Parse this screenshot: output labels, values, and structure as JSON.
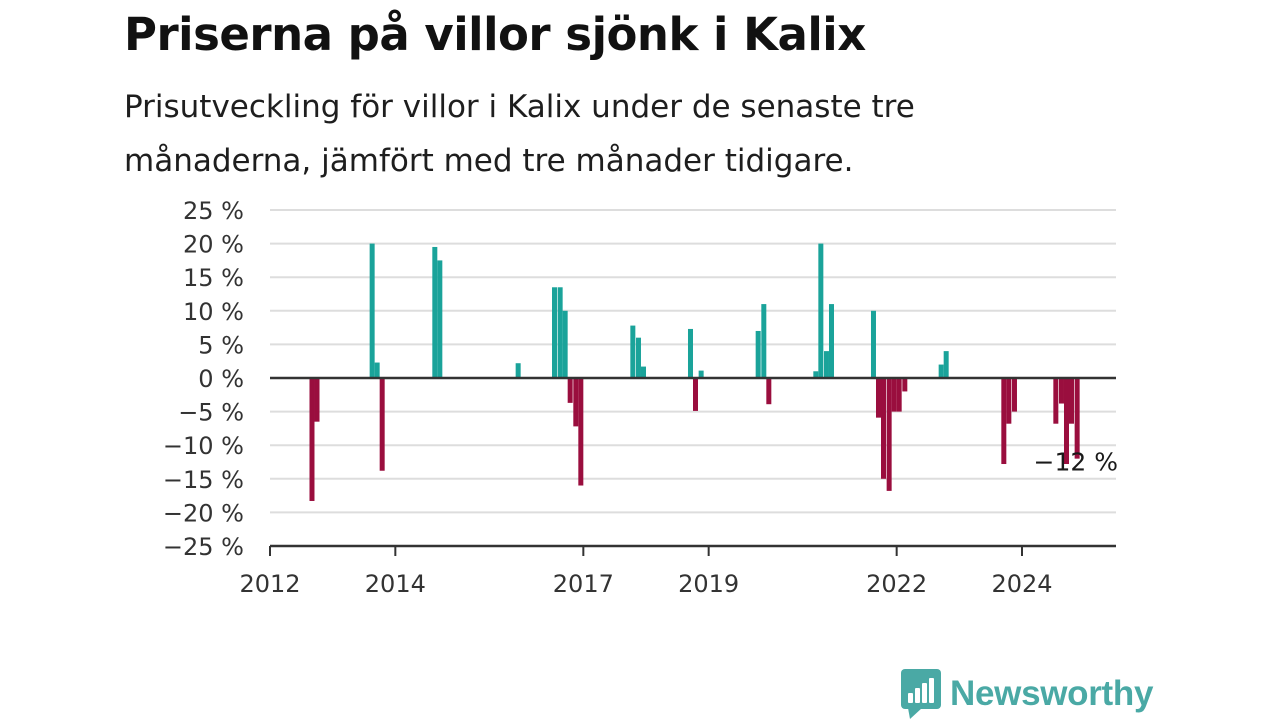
{
  "header": {
    "title": "Priserna på villor sjönk i Kalix",
    "subtitle": "Prisutveckling för villor i Kalix under de senaste tre månaderna, jämfört med tre månader tidigare."
  },
  "brand": {
    "name": "Newsworthy",
    "color": "#4aa9a5"
  },
  "chart_data": {
    "type": "bar",
    "title": "Priserna på villor sjönk i Kalix",
    "xlabel": "",
    "ylabel": "",
    "ylim": [
      -25,
      25
    ],
    "xlim": [
      2012.0,
      2025.5
    ],
    "y_ticks": [
      25,
      20,
      15,
      10,
      5,
      0,
      -5,
      -10,
      -15,
      -20,
      -25
    ],
    "y_tick_labels": [
      "25 %",
      "20 %",
      "15 %",
      "10 %",
      "5 %",
      "0 %",
      "−5 %",
      "−10 %",
      "−15 %",
      "−20 %",
      "−25 %"
    ],
    "x_ticks": [
      2012,
      2014,
      2017,
      2019,
      2022,
      2024
    ],
    "x_tick_labels": [
      "2012",
      "2014",
      "2017",
      "2019",
      "2022",
      "2024"
    ],
    "grid": true,
    "colors": {
      "positive": "#1aa39a",
      "negative": "#9a0e3e",
      "grid": "#dddddd",
      "axis": "#333333"
    },
    "annotation": {
      "text": "−12 %",
      "x": 2025.08,
      "y": -12
    },
    "series": [
      {
        "values": [
          {
            "x": 2012.67,
            "y": -18.3
          },
          {
            "x": 2012.75,
            "y": -6.5
          },
          {
            "x": 2013.63,
            "y": 20.0
          },
          {
            "x": 2013.71,
            "y": 2.3
          },
          {
            "x": 2013.79,
            "y": -13.8
          },
          {
            "x": 2014.63,
            "y": 19.5
          },
          {
            "x": 2014.71,
            "y": 17.5
          },
          {
            "x": 2015.96,
            "y": 2.2
          },
          {
            "x": 2016.54,
            "y": 13.5
          },
          {
            "x": 2016.63,
            "y": 13.5
          },
          {
            "x": 2016.71,
            "y": 10.0
          },
          {
            "x": 2016.79,
            "y": -3.7
          },
          {
            "x": 2016.88,
            "y": -7.2
          },
          {
            "x": 2016.96,
            "y": -16.0
          },
          {
            "x": 2017.79,
            "y": 7.8
          },
          {
            "x": 2017.88,
            "y": 6.0
          },
          {
            "x": 2017.96,
            "y": 1.7
          },
          {
            "x": 2018.71,
            "y": 7.3
          },
          {
            "x": 2018.79,
            "y": -4.9
          },
          {
            "x": 2018.88,
            "y": 1.1
          },
          {
            "x": 2019.79,
            "y": 7.0
          },
          {
            "x": 2019.88,
            "y": 11.0
          },
          {
            "x": 2019.96,
            "y": -3.9
          },
          {
            "x": 2020.71,
            "y": 1.0
          },
          {
            "x": 2020.79,
            "y": 20.0
          },
          {
            "x": 2020.88,
            "y": 4.0
          },
          {
            "x": 2020.96,
            "y": 11.0
          },
          {
            "x": 2021.63,
            "y": 10.0
          },
          {
            "x": 2021.71,
            "y": -5.9
          },
          {
            "x": 2021.79,
            "y": -15.0
          },
          {
            "x": 2021.88,
            "y": -16.8
          },
          {
            "x": 2021.96,
            "y": -5.0
          },
          {
            "x": 2022.04,
            "y": -5.0
          },
          {
            "x": 2022.13,
            "y": -2.0
          },
          {
            "x": 2022.71,
            "y": 2.0
          },
          {
            "x": 2022.79,
            "y": 4.0
          },
          {
            "x": 2023.71,
            "y": -12.8
          },
          {
            "x": 2023.79,
            "y": -6.8
          },
          {
            "x": 2023.88,
            "y": -5.0
          },
          {
            "x": 2024.54,
            "y": -6.8
          },
          {
            "x": 2024.63,
            "y": -3.8
          },
          {
            "x": 2024.71,
            "y": -12.8
          },
          {
            "x": 2024.79,
            "y": -6.8
          },
          {
            "x": 2024.88,
            "y": -12.0
          }
        ]
      }
    ]
  }
}
